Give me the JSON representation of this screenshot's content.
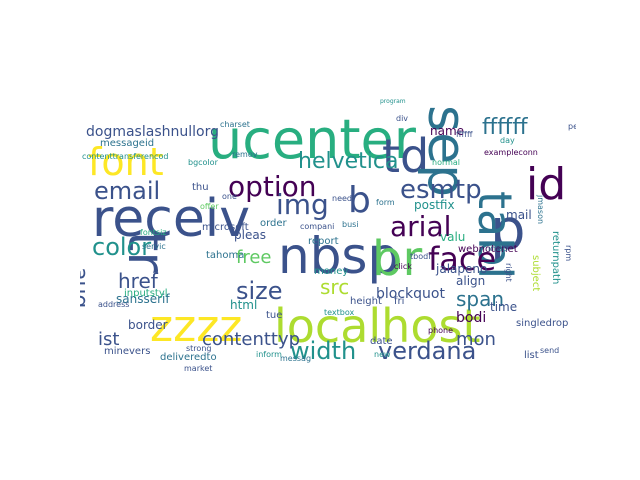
{
  "palette": {
    "c1": "#440154",
    "c2": "#3b528b",
    "c3": "#2c728e",
    "c4": "#21918c",
    "c5": "#28ae80",
    "c6": "#5ec962",
    "c7": "#addc30",
    "c8": "#fde725",
    "bg": "#ffffff"
  },
  "words": [
    "ucenter",
    "font",
    "td",
    "sep",
    "id",
    "receiv",
    "tr",
    "nbsp",
    "br",
    "p",
    "tabl",
    "zzzz",
    "localhost",
    "email",
    "option",
    "img",
    "b",
    "arial",
    "esmtp",
    "face",
    "color",
    "aug",
    "helvetica",
    "size",
    "width",
    "verdana",
    "href",
    "src",
    "span",
    "contenttyp",
    "ist",
    "mon",
    "free",
    "ffffff",
    "dogmaslashnullorg",
    "bodi",
    "blockquot",
    "postfix",
    "align",
    "html",
    "border",
    "jalapeno",
    "webnotenet",
    "money",
    "tahoma",
    "subject",
    "returnpath",
    "sansserif",
    "date",
    "list",
    "singledrop",
    "deliveredto",
    "minevers",
    "messageid",
    "thu",
    "microsoft",
    "order",
    "pleas",
    "report",
    "mail",
    "valu",
    "name",
    "time",
    "height",
    "fri",
    "tue",
    "inputstyl",
    "address",
    "new",
    "servic",
    "compani",
    "busi",
    "click",
    "right",
    "tbodi",
    "imap",
    "charset",
    "peopl",
    "day",
    "exampleconn",
    "div",
    "program",
    "remov",
    "offer",
    "one",
    "form",
    "need",
    "send",
    "market",
    "strong",
    "normal",
    "ffffff",
    "textbox",
    "messag",
    "inform",
    "contenttransferencod",
    "fontsiz",
    "phone",
    "bgcolor",
    "jmason",
    "rpm"
  ]
}
